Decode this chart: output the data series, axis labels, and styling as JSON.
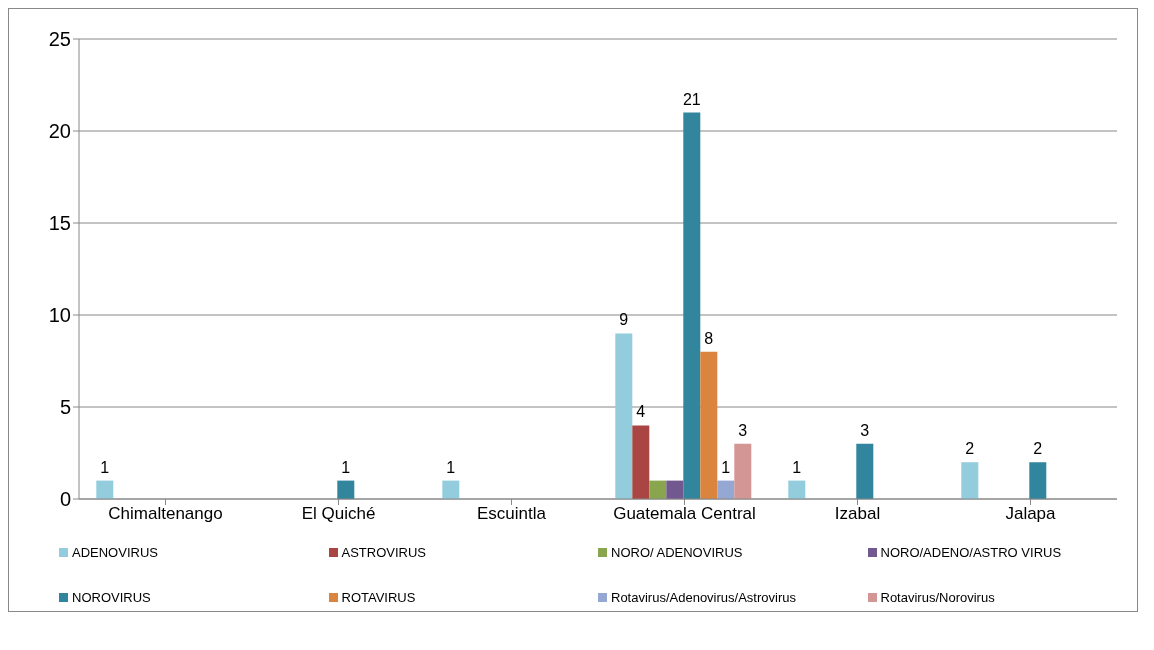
{
  "chart_data": {
    "type": "bar",
    "categories": [
      "Chimaltenango",
      "El Quiché",
      "Escuintla",
      "Guatemala Central",
      "Izabal",
      "Jalapa"
    ],
    "series": [
      {
        "name": "ADENOVIRUS",
        "color": "#93cddd",
        "values": [
          1,
          null,
          1,
          9,
          1,
          2
        ],
        "value_labels": [
          "1",
          null,
          "1",
          "9",
          "1",
          "2"
        ]
      },
      {
        "name": "ASTROVIRUS",
        "color": "#a94643",
        "values": [
          null,
          null,
          null,
          4,
          null,
          null
        ],
        "value_labels": [
          null,
          null,
          null,
          "4",
          null,
          null
        ]
      },
      {
        "name": "NORO/ ADENOVIRUS",
        "color": "#89a54e",
        "values": [
          null,
          null,
          null,
          1,
          null,
          null
        ],
        "value_labels": [
          null,
          null,
          null,
          null,
          null,
          null
        ]
      },
      {
        "name": "NORO/ADENO/ASTRO VIRUS",
        "color": "#71588f",
        "values": [
          null,
          null,
          null,
          1,
          null,
          null
        ],
        "value_labels": [
          null,
          null,
          null,
          null,
          null,
          null
        ]
      },
      {
        "name": "NOROVIRUS",
        "color": "#31859c",
        "values": [
          null,
          1,
          null,
          21,
          3,
          2
        ],
        "value_labels": [
          null,
          "1",
          null,
          "21",
          "3",
          "2"
        ]
      },
      {
        "name": "ROTAVIRUS",
        "color": "#db843d",
        "values": [
          null,
          null,
          null,
          8,
          null,
          null
        ],
        "value_labels": [
          null,
          null,
          null,
          "8",
          null,
          null
        ]
      },
      {
        "name": "Rotavirus/Adenovirus/Astrovirus",
        "color": "#95a7d3",
        "values": [
          null,
          null,
          null,
          1,
          null,
          null
        ],
        "value_labels": [
          null,
          null,
          null,
          "1",
          null,
          null
        ]
      },
      {
        "name": "Rotavirus/Norovirus",
        "color": "#d49694",
        "values": [
          null,
          null,
          null,
          3,
          null,
          null
        ],
        "value_labels": [
          null,
          null,
          null,
          "3",
          null,
          null
        ]
      }
    ],
    "ylim": [
      0,
      25
    ],
    "yticks": [
      0,
      5,
      10,
      15,
      20,
      25
    ],
    "grid": "y",
    "legend": "bottom"
  }
}
